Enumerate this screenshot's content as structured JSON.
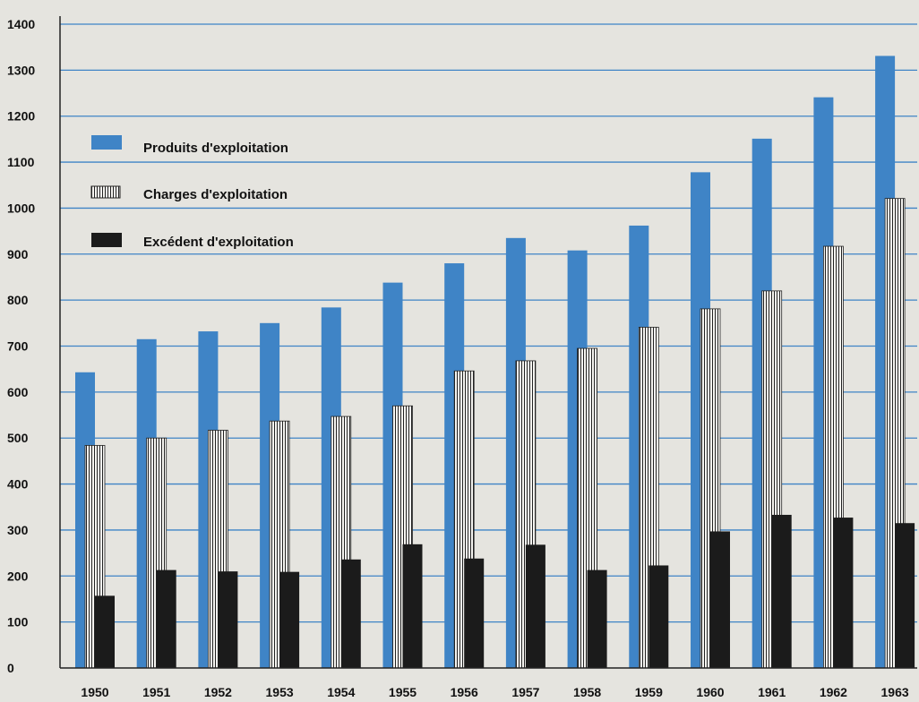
{
  "chart_data": {
    "type": "bar",
    "categories": [
      "1950",
      "1951",
      "1952",
      "1953",
      "1954",
      "1955",
      "1956",
      "1957",
      "1958",
      "1959",
      "1960",
      "1961",
      "1962",
      "1963"
    ],
    "series": [
      {
        "name": "Produits d'exploitation",
        "color": "#3f84c6",
        "values": [
          643,
          715,
          732,
          750,
          784,
          838,
          880,
          935,
          908,
          962,
          1078,
          1151,
          1241,
          1331
        ]
      },
      {
        "name": "Charges d'exploitation",
        "pattern": "vertical-hatch",
        "values": [
          484,
          500,
          517,
          537,
          547,
          570,
          646,
          668,
          695,
          741,
          781,
          820,
          917,
          1021
        ]
      },
      {
        "name": "Excédent d'exploitation",
        "color": "#1b1b1b",
        "values": [
          157,
          213,
          210,
          209,
          236,
          269,
          238,
          268,
          213,
          223,
          297,
          333,
          327,
          315
        ]
      }
    ],
    "y_ticks": [
      "0",
      "100",
      "200",
      "300",
      "400",
      "500",
      "600",
      "700",
      "800",
      "900",
      "1000",
      "1100",
      "1200",
      "1300",
      "1400"
    ],
    "ylim": [
      0,
      1400
    ],
    "grid": true,
    "grid_color": "#3f84c6",
    "legend_position": "top-left"
  }
}
